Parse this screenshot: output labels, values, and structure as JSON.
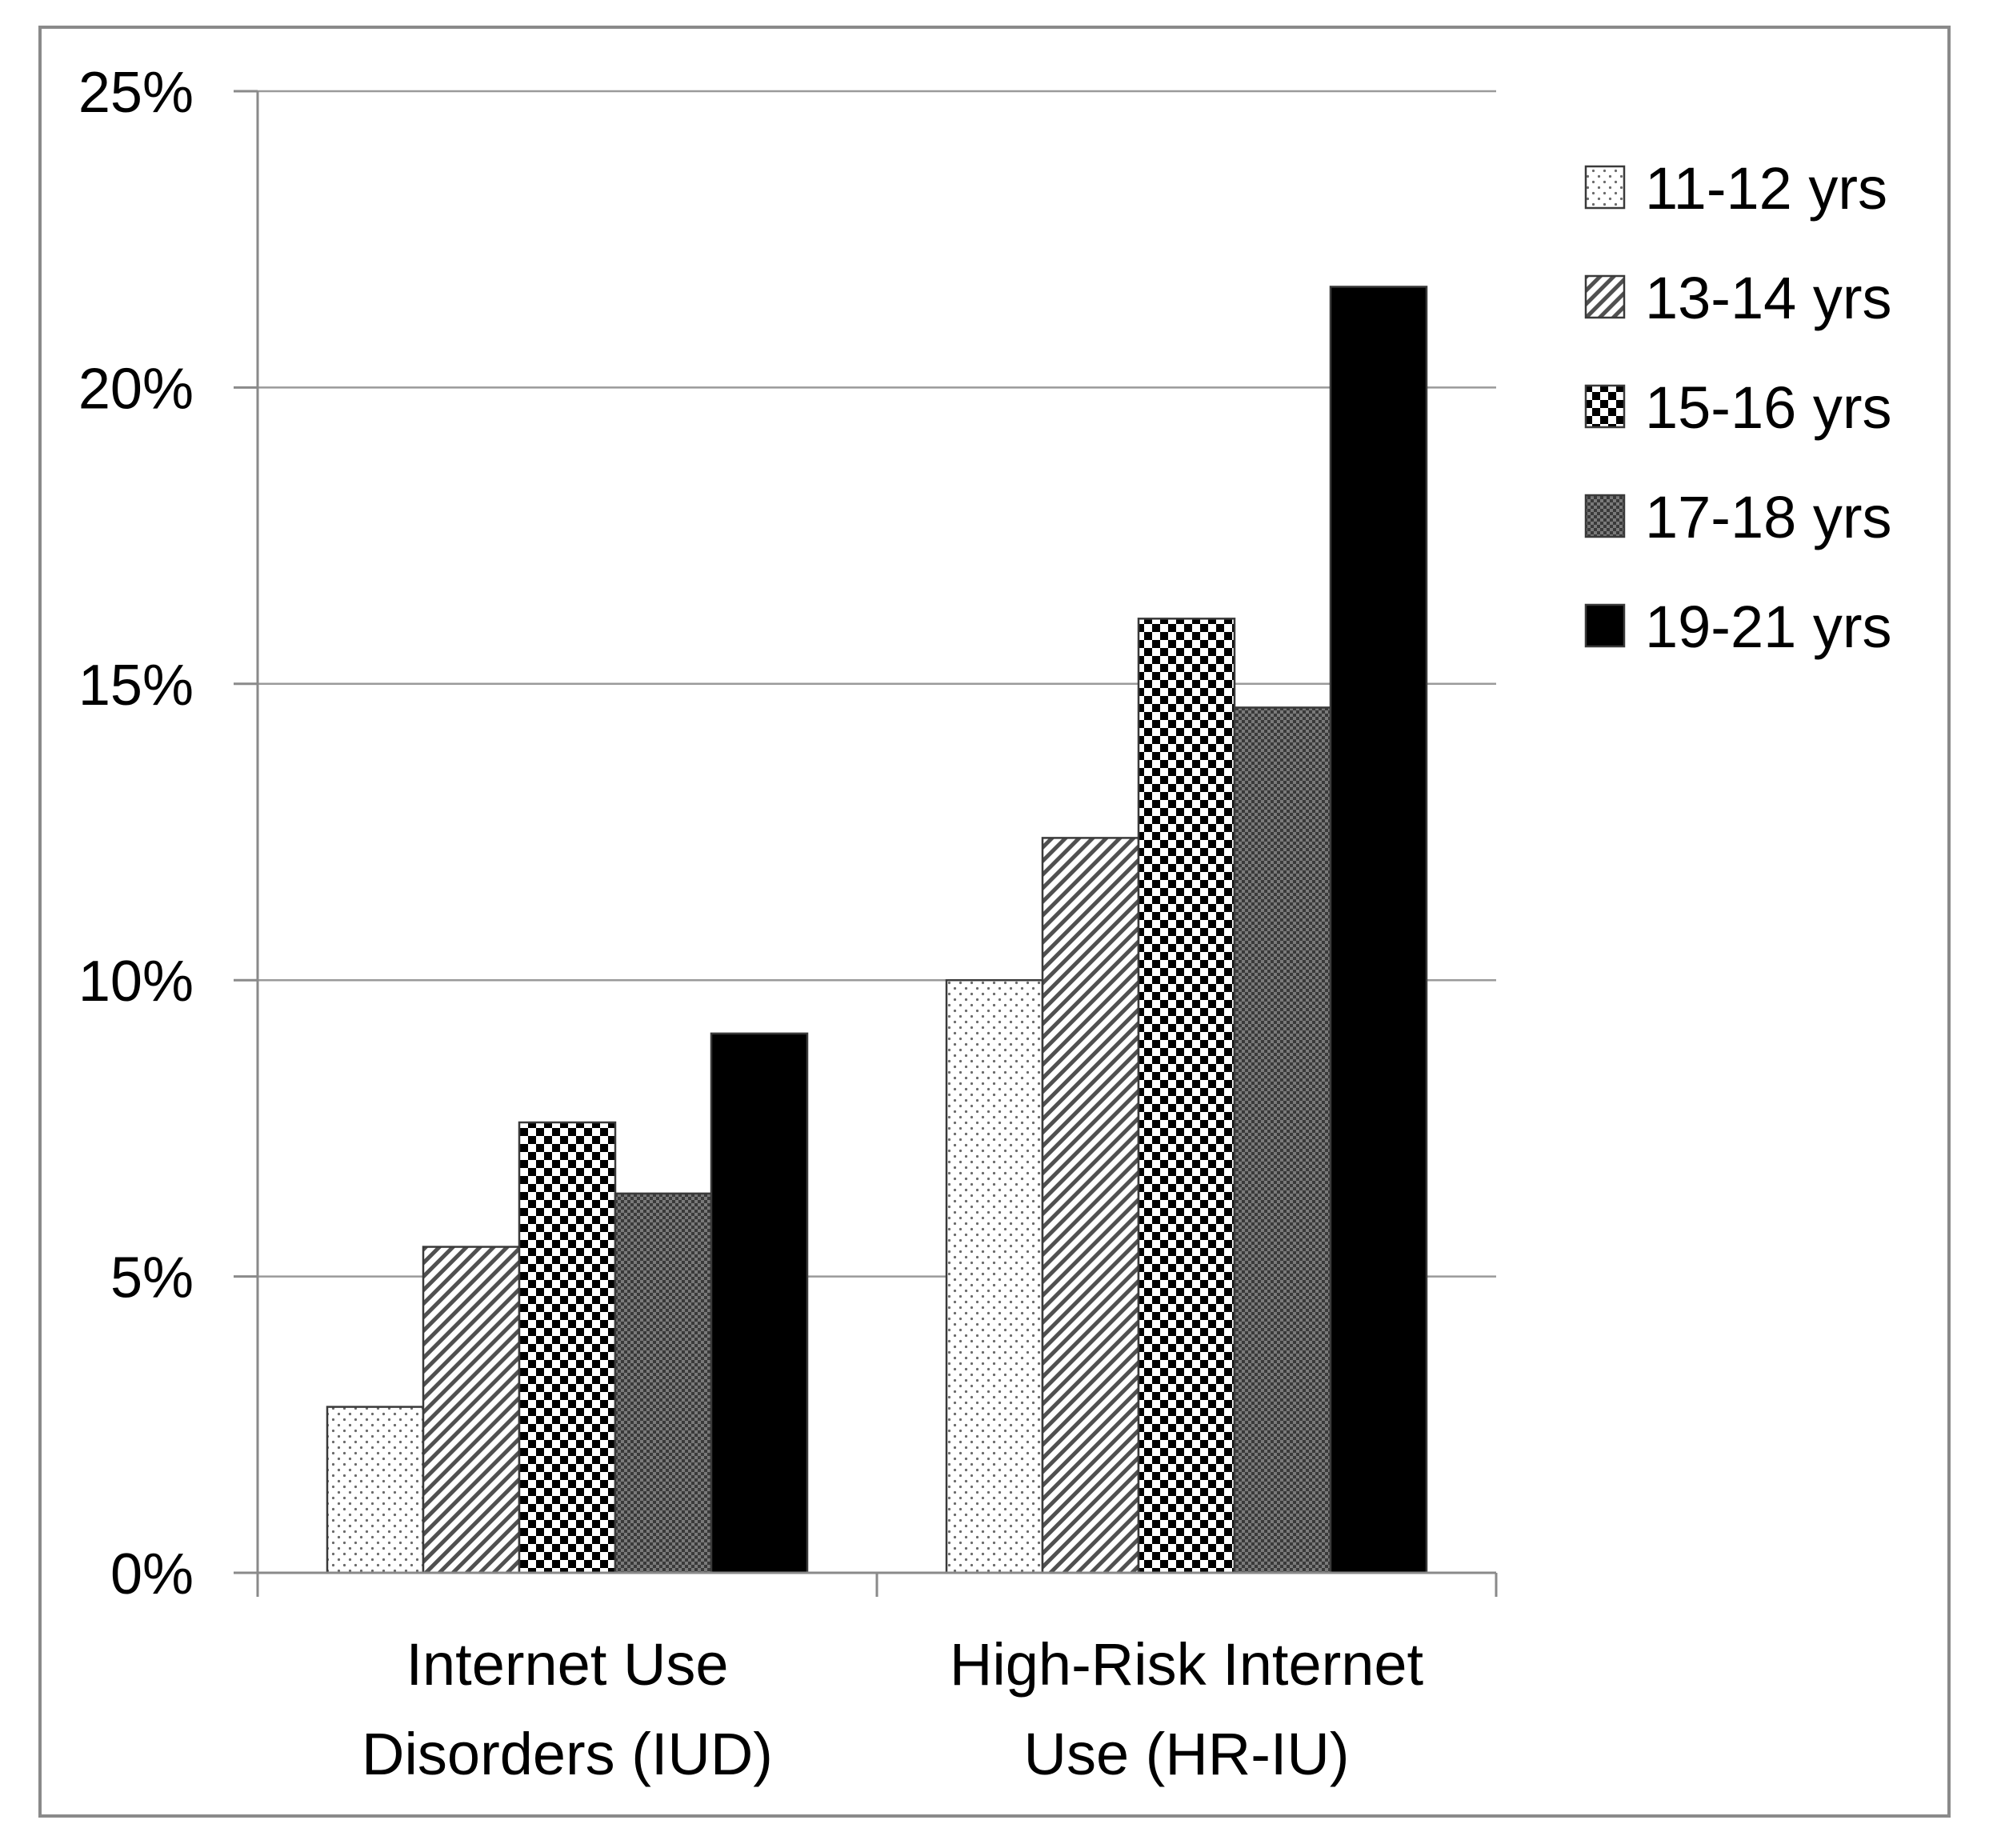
{
  "chart_data": {
    "type": "bar",
    "categories": [
      [
        "Internet Use",
        "Disorders (IUD)"
      ],
      [
        "High-Risk Internet",
        "Use (HR-IU)"
      ]
    ],
    "series": [
      {
        "name": "11-12 yrs",
        "values": [
          2.8,
          10.0
        ]
      },
      {
        "name": "13-14 yrs",
        "values": [
          5.5,
          12.4
        ]
      },
      {
        "name": "15-16 yrs",
        "values": [
          7.6,
          16.1
        ]
      },
      {
        "name": "17-18 yrs",
        "values": [
          6.4,
          14.6
        ]
      },
      {
        "name": "19-21 yrs",
        "values": [
          9.1,
          21.7
        ]
      }
    ],
    "ylim": [
      0,
      25
    ],
    "yticks": [
      0,
      5,
      10,
      15,
      20,
      25
    ],
    "ytick_format": "percent",
    "grid": true,
    "legend": "right",
    "patterns": [
      "dots",
      "diagonal-hatch",
      "checker",
      "fine-checker",
      "solid-black"
    ]
  }
}
